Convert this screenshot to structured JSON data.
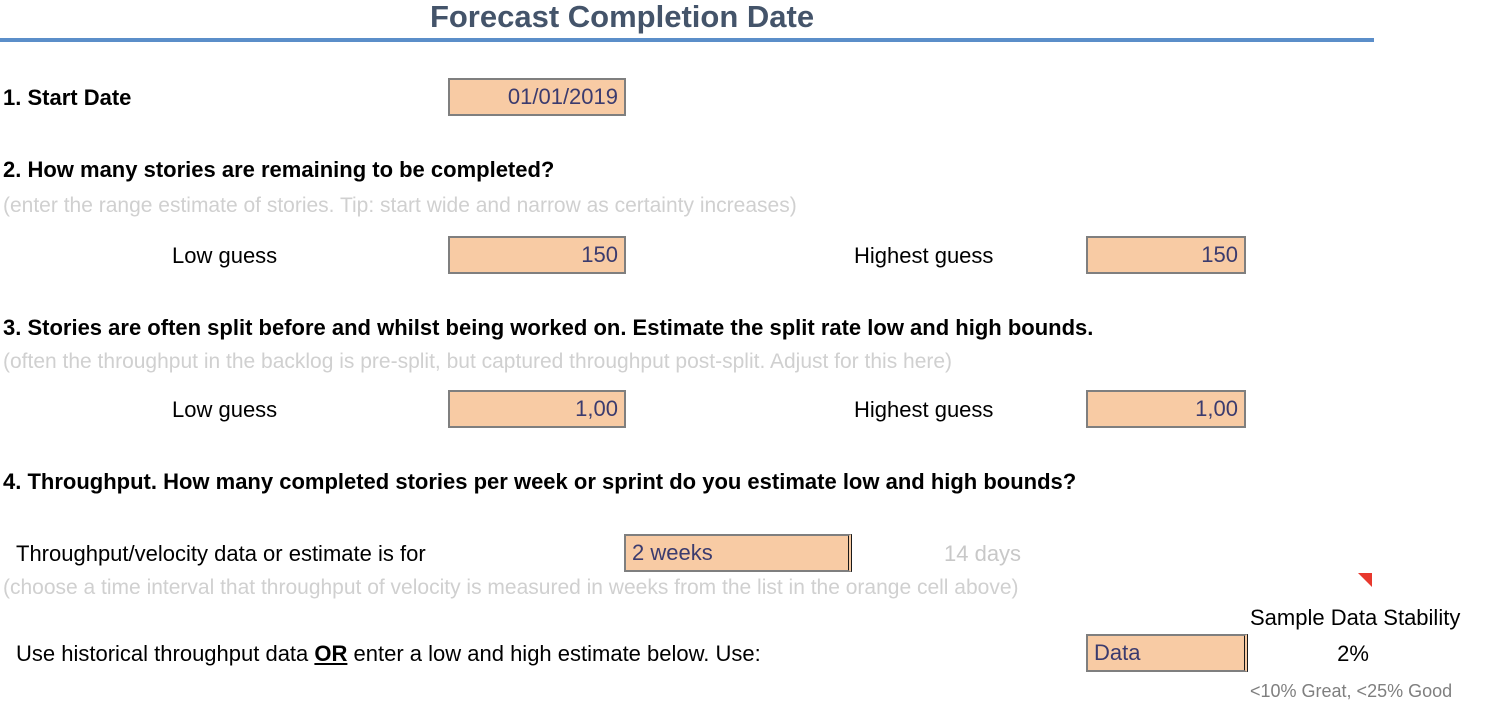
{
  "title": "Forecast Completion Date",
  "q1": {
    "label": "1. Start Date",
    "value": "01/01/2019"
  },
  "q2": {
    "label": "2. How many stories are remaining to be completed?",
    "hint": "(enter the range estimate of stories. Tip: start wide and narrow as certainty increases)",
    "low_label": "Low guess",
    "low_value": "150",
    "high_label": "Highest guess",
    "high_value": "150"
  },
  "q3": {
    "label": "3. Stories are often split before and whilst being worked on. Estimate the split rate low and high bounds.",
    "hint": "(often the throughput in the backlog is pre-split, but captured throughput post-split. Adjust for this here)",
    "low_label": "Low guess",
    "low_value": "1,00",
    "high_label": "Highest guess",
    "high_value": "1,00"
  },
  "q4": {
    "label": "4. Throughput. How many completed stories per week or sprint do you estimate low and high bounds?",
    "interval_label": "Throughput/velocity data or estimate is for",
    "interval_value": "2 weeks",
    "interval_days": "14  days",
    "interval_hint": "(choose a time interval that throughput of velocity is measured in weeks from the list in the orange cell above)",
    "use_label_prefix": "Use historical throughput data ",
    "use_label_emph": "OR",
    "use_label_suffix": " enter a low and high estimate below. Use:",
    "use_value": "Data"
  },
  "stability": {
    "header": "Sample Data Stability",
    "value": "2%",
    "legend": "<10% Great, <25% Good"
  },
  "colors": {
    "title": "#44546a",
    "rule": "#5b8ec9",
    "input_fill": "#f8cba4",
    "hint_text": "#d0d0d0",
    "comment_marker": "#e8382d"
  }
}
